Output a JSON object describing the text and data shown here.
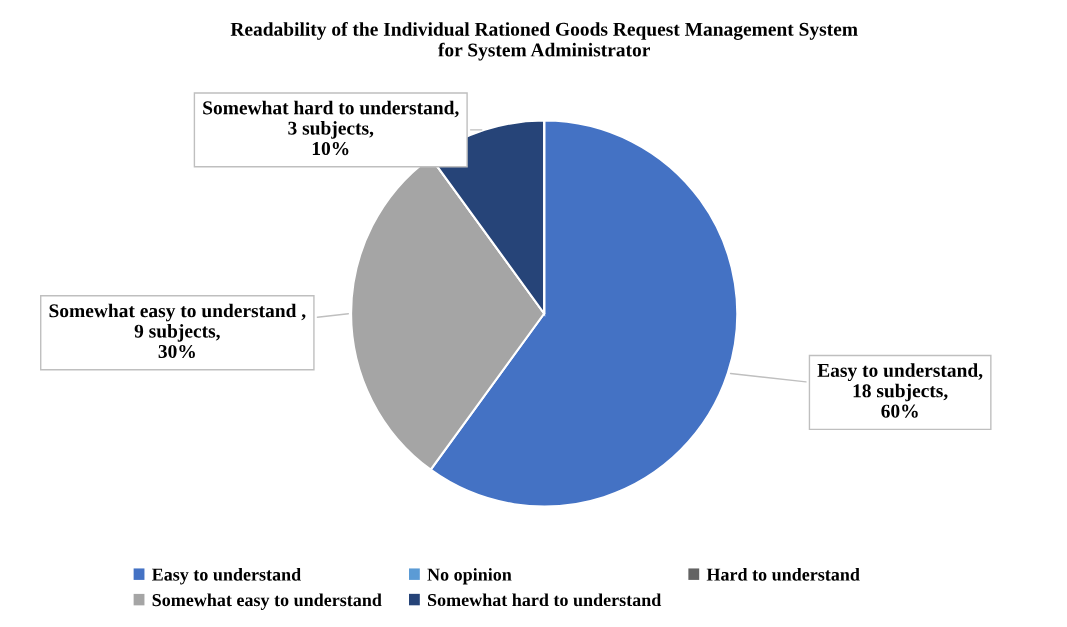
{
  "chart_data": {
    "type": "pie",
    "title": "Readability of the Individual Rationed Goods Request Management System\nfor System Administrator",
    "categories": [
      "Easy to understand",
      "Somewhat easy to understand",
      "No opinion",
      "Somewhat hard to understand",
      "Hard to understand"
    ],
    "values": [
      18,
      9,
      0,
      3,
      0
    ],
    "colors": [
      "#4472c4",
      "#a5a5a5",
      "#5b9bd5",
      "#264478",
      "#636363"
    ],
    "value_labels": [
      "Easy to understand,\n18 subjects,\n60%",
      "Somewhat easy to understand ,\n9 subjects,\n30%",
      null,
      "Somewhat hard to understand,\n3 subjects,\n10%",
      null
    ],
    "legend": "bottom"
  }
}
